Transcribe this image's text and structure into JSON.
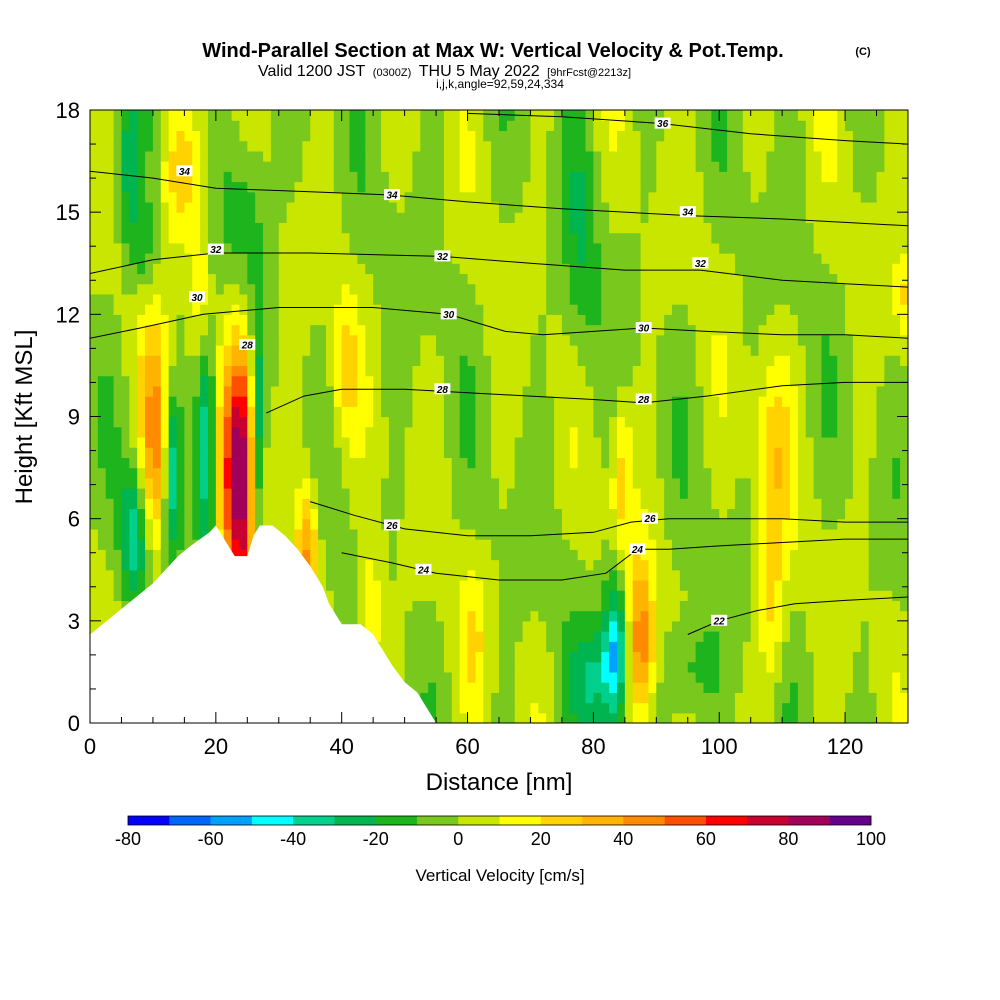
{
  "title": {
    "main": "Wind-Parallel Section at Max W: Vertical Velocity & Pot.Temp.",
    "copyright": "(C)",
    "sub_a": "Valid 1200 JST",
    "sub_b": "(0300Z)",
    "sub_c": "THU 5 May 2022",
    "sub_d": "[9hrFcst@2213z]",
    "sub_e": "i,j,k,angle=92,59,24,334"
  },
  "chart_data": {
    "type": "heatmap",
    "xlabel": "Distance [nm]",
    "ylabel": "Height [Kft MSL]",
    "xlim": [
      0,
      130
    ],
    "ylim": [
      0,
      18
    ],
    "xticks": [
      0,
      20,
      40,
      60,
      80,
      100,
      120
    ],
    "yticks": [
      0,
      3,
      6,
      9,
      12,
      15,
      18
    ],
    "colorbar": {
      "label": "Vertical Velocity [cm/s]",
      "range": [
        -80,
        100
      ],
      "step": 10,
      "ticks": [
        -80,
        -60,
        -40,
        -20,
        0,
        20,
        40,
        60,
        80,
        100
      ],
      "colors": [
        "#0000ff",
        "#0064ff",
        "#00a0ff",
        "#00ffff",
        "#00d08c",
        "#00b450",
        "#1eb41e",
        "#78c81e",
        "#c8e600",
        "#ffff00",
        "#ffd200",
        "#ffb400",
        "#ff8c00",
        "#ff5000",
        "#ff0000",
        "#c80032",
        "#a0005a",
        "#64008c"
      ]
    },
    "terrain": [
      [
        0,
        2.6
      ],
      [
        2,
        2.9
      ],
      [
        4,
        3.2
      ],
      [
        6,
        3.5
      ],
      [
        8,
        3.8
      ],
      [
        10,
        4.1
      ],
      [
        12,
        4.5
      ],
      [
        14,
        4.9
      ],
      [
        16,
        5.2
      ],
      [
        19,
        5.6
      ],
      [
        20,
        5.8
      ],
      [
        21,
        5.5
      ],
      [
        22,
        5.2
      ],
      [
        23,
        4.9
      ],
      [
        25,
        4.9
      ],
      [
        26,
        5.5
      ],
      [
        27,
        5.8
      ],
      [
        29,
        5.8
      ],
      [
        31,
        5.5
      ],
      [
        33,
        5.1
      ],
      [
        35,
        4.6
      ],
      [
        37,
        4.0
      ],
      [
        38,
        3.5
      ],
      [
        39,
        3.2
      ],
      [
        40,
        2.9
      ],
      [
        43,
        2.9
      ],
      [
        45,
        2.6
      ],
      [
        46,
        2.3
      ],
      [
        48,
        1.7
      ],
      [
        50,
        1.2
      ],
      [
        52,
        0.9
      ],
      [
        53,
        0.6
      ],
      [
        54,
        0.3
      ],
      [
        55,
        0.0
      ]
    ],
    "series": [
      {
        "value": 22,
        "label": "22",
        "label_at": [
          100,
          3.0
        ],
        "points": [
          [
            95,
            2.6
          ],
          [
            100,
            3.0
          ],
          [
            106,
            3.3
          ],
          [
            112,
            3.5
          ],
          [
            120,
            3.6
          ],
          [
            130,
            3.7
          ]
        ]
      },
      {
        "value": 24,
        "label": "24",
        "label_at": [
          53,
          4.5
        ],
        "points": [
          [
            40,
            5.0
          ],
          [
            48,
            4.7
          ],
          [
            55,
            4.4
          ],
          [
            65,
            4.2
          ],
          [
            75,
            4.2
          ],
          [
            82,
            4.4
          ],
          [
            87,
            5.1
          ],
          [
            92,
            5.1
          ],
          [
            100,
            5.2
          ],
          [
            110,
            5.3
          ],
          [
            120,
            5.4
          ],
          [
            130,
            5.4
          ]
        ]
      },
      {
        "value": 26,
        "label": "26",
        "label_at": [
          48,
          5.8
        ],
        "points": [
          [
            35,
            6.5
          ],
          [
            42,
            6.1
          ],
          [
            50,
            5.7
          ],
          [
            60,
            5.5
          ],
          [
            70,
            5.5
          ],
          [
            80,
            5.6
          ],
          [
            86,
            5.9
          ],
          [
            92,
            6.0
          ],
          [
            100,
            6.0
          ],
          [
            110,
            6.0
          ],
          [
            120,
            5.9
          ],
          [
            130,
            5.9
          ]
        ]
      },
      {
        "value": 28,
        "label": "28",
        "label_at": [
          56,
          9.8
        ],
        "points": [
          [
            28,
            9.1
          ],
          [
            34,
            9.6
          ],
          [
            40,
            9.8
          ],
          [
            50,
            9.8
          ],
          [
            60,
            9.7
          ],
          [
            70,
            9.6
          ],
          [
            80,
            9.5
          ],
          [
            88,
            9.4
          ],
          [
            98,
            9.6
          ],
          [
            110,
            9.9
          ],
          [
            120,
            10.0
          ],
          [
            130,
            10.0
          ]
        ]
      },
      {
        "value": 30,
        "label": "30",
        "label_at": [
          57,
          12.0
        ],
        "points": [
          [
            0,
            11.3
          ],
          [
            8,
            11.6
          ],
          [
            18,
            12.0
          ],
          [
            30,
            12.2
          ],
          [
            45,
            12.2
          ],
          [
            57,
            12.0
          ],
          [
            66,
            11.5
          ],
          [
            72,
            11.4
          ],
          [
            80,
            11.5
          ],
          [
            88,
            11.6
          ],
          [
            98,
            11.5
          ],
          [
            110,
            11.4
          ],
          [
            120,
            11.4
          ],
          [
            130,
            11.3
          ]
        ]
      },
      {
        "value": 32,
        "label": "32",
        "label_at": [
          56,
          13.7
        ],
        "points": [
          [
            0,
            13.2
          ],
          [
            10,
            13.6
          ],
          [
            20,
            13.8
          ],
          [
            35,
            13.8
          ],
          [
            56,
            13.7
          ],
          [
            70,
            13.5
          ],
          [
            85,
            13.3
          ],
          [
            97,
            13.3
          ],
          [
            110,
            13.0
          ],
          [
            120,
            12.9
          ],
          [
            130,
            12.8
          ]
        ]
      },
      {
        "value": 34,
        "label": "34",
        "label_at": [
          48,
          15.5
        ],
        "points": [
          [
            0,
            16.2
          ],
          [
            10,
            16.0
          ],
          [
            20,
            15.7
          ],
          [
            35,
            15.6
          ],
          [
            48,
            15.5
          ],
          [
            60,
            15.3
          ],
          [
            75,
            15.1
          ],
          [
            95,
            14.9
          ],
          [
            110,
            14.8
          ],
          [
            120,
            14.7
          ],
          [
            130,
            14.6
          ]
        ]
      },
      {
        "value": 36,
        "label": "36",
        "label_at": [
          91,
          17.6
        ],
        "points": [
          [
            60,
            17.9
          ],
          [
            75,
            17.8
          ],
          [
            91,
            17.6
          ],
          [
            105,
            17.3
          ],
          [
            120,
            17.1
          ],
          [
            130,
            17.0
          ]
        ]
      }
    ],
    "extra_labels": [
      {
        "label": "34",
        "at": [
          15,
          16.2
        ]
      },
      {
        "label": "32",
        "at": [
          20,
          13.9
        ]
      },
      {
        "label": "30",
        "at": [
          17,
          12.5
        ]
      },
      {
        "label": "28",
        "at": [
          25,
          11.1
        ]
      },
      {
        "label": "34",
        "at": [
          95,
          15.0
        ]
      },
      {
        "label": "32",
        "at": [
          97,
          13.5
        ]
      },
      {
        "label": "30",
        "at": [
          88,
          11.6
        ]
      },
      {
        "label": "28",
        "at": [
          88,
          9.5
        ]
      },
      {
        "label": "26",
        "at": [
          89,
          6.0
        ]
      },
      {
        "label": "24",
        "at": [
          87,
          5.1
        ]
      }
    ],
    "w_features": [
      {
        "x": 24,
        "y": 7.5,
        "peak": 95,
        "rx": 2.0,
        "ry": 2.8
      },
      {
        "x": 10.5,
        "y": 8.3,
        "peak": 45,
        "rx": 1.8,
        "ry": 2.2
      },
      {
        "x": 14.5,
        "y": 16.0,
        "peak": 25,
        "rx": 2.5,
        "ry": 1.5
      },
      {
        "x": 17.5,
        "y": 12.8,
        "peak": 20,
        "rx": 1.2,
        "ry": 1.5
      },
      {
        "x": 34.5,
        "y": 4.5,
        "peak": 45,
        "rx": 1.3,
        "ry": 1.8
      },
      {
        "x": 40.5,
        "y": 10.5,
        "peak": 20,
        "rx": 1.4,
        "ry": 1.5
      },
      {
        "x": 44.5,
        "y": 3.3,
        "peak": 25,
        "rx": 1.5,
        "ry": 1.3
      },
      {
        "x": 87.5,
        "y": 2.2,
        "peak": 50,
        "rx": 1.6,
        "ry": 1.8
      },
      {
        "x": 84.5,
        "y": 7.3,
        "peak": 25,
        "rx": 1.2,
        "ry": 1.7
      },
      {
        "x": 108.5,
        "y": 7.5,
        "peak": 25,
        "rx": 2.0,
        "ry": 2.3
      },
      {
        "x": 108.5,
        "y": 3.0,
        "peak": 20,
        "rx": 1.5,
        "ry": 1.5
      },
      {
        "x": 130,
        "y": 12.5,
        "peak": 20,
        "rx": 1.5,
        "ry": 1.0
      },
      {
        "x": 61,
        "y": 2.5,
        "peak": 15,
        "rx": 1.5,
        "ry": 1.5
      },
      {
        "x": 7,
        "y": 5.5,
        "peak": -35,
        "rx": 1.5,
        "ry": 1.5
      },
      {
        "x": 13,
        "y": 7.5,
        "peak": -45,
        "rx": 1.0,
        "ry": 1.7
      },
      {
        "x": 18.5,
        "y": 8.0,
        "peak": -50,
        "rx": 1.2,
        "ry": 2.2
      },
      {
        "x": 26.5,
        "y": 8.0,
        "peak": -50,
        "rx": 0.8,
        "ry": 2.6
      },
      {
        "x": 83.5,
        "y": 2.2,
        "peak": -50,
        "rx": 1.5,
        "ry": 1.5
      },
      {
        "x": 6,
        "y": 16.5,
        "peak": -25,
        "rx": 1.5,
        "ry": 1.3
      },
      {
        "x": 25,
        "y": 15.0,
        "peak": -20,
        "rx": 2.5,
        "ry": 2.0
      },
      {
        "x": 8,
        "y": 14.0,
        "peak": -20,
        "rx": 2.0,
        "ry": 1.0
      },
      {
        "x": 80,
        "y": 1.2,
        "peak": -25,
        "rx": 2.5,
        "ry": 1.2
      },
      {
        "x": 95,
        "y": 1.5,
        "peak": -20,
        "rx": 3.0,
        "ry": 1.2
      },
      {
        "x": 78,
        "y": 14.0,
        "peak": -15,
        "rx": 2.0,
        "ry": 3.0
      }
    ],
    "w_background": 0
  }
}
